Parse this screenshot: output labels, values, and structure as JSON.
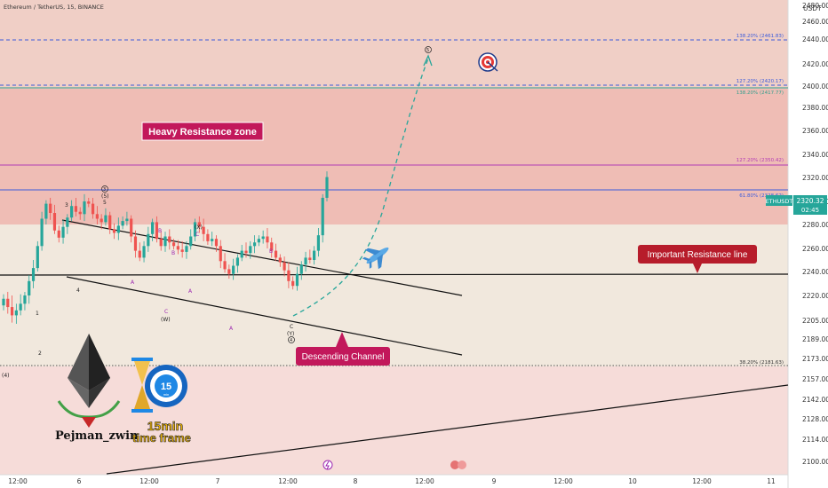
{
  "header": {
    "title": "Ethereum / TetherUS, 15, BINANCE"
  },
  "price_axis": {
    "unit_label": "USDT"
  },
  "ticker": {
    "symbol": "ETHUSDT",
    "price": "2320.32",
    "countdown": "02:45"
  },
  "annotations": {
    "heavy_zone": "Heavy Resistance zone",
    "important_line": "Important Resistance line",
    "channel": "Descending Channel"
  },
  "branding": {
    "author": "Pejman_zwin",
    "timeframe_line1": "15min",
    "timeframe_line2": "time frame",
    "clock_number": "15",
    "clock_unit": "min"
  },
  "colors": {
    "resistance_zone": "#efbdb5",
    "upper_zone": "#f0cfc6",
    "neutral_band": "#f1e8dd",
    "lower_zone": "#f6dcd9",
    "bull": "#26a69a",
    "bear": "#ef5350",
    "label_red": "#c2185b",
    "fib_blue": "#3b5bdb",
    "fib_purple": "#b23ab5",
    "fib_teal": "#2e9e8c"
  },
  "chart_data": {
    "type": "candlestick",
    "title": "Ethereum / TetherUS, 15, BINANCE",
    "y_axis": {
      "ticks": [
        2480,
        2460,
        2440,
        2420,
        2400,
        2380,
        2360,
        2340,
        2320,
        2300,
        2280,
        2260,
        2240,
        2220,
        2205,
        2189,
        2173,
        2157,
        2142,
        2128,
        2114,
        2100
      ],
      "labels": [
        "2480.00",
        "2460.00",
        "2440.00",
        "2420.00",
        "2400.00",
        "2380.00",
        "2360.00",
        "2340.00",
        "2320.00",
        "2300.00",
        "2280.00",
        "2260.00",
        "2240.00",
        "2220.00",
        "2205.00",
        "2189.00",
        "2173.00",
        "2157.00",
        "2142.00",
        "2128.00",
        "2114.00",
        "2100.00"
      ]
    },
    "x_axis": {
      "labels": [
        "12:00",
        "6",
        "12:00",
        "7",
        "12:00",
        "8",
        "12:00",
        "9",
        "12:00",
        "10",
        "12:00",
        "11"
      ]
    },
    "last_price": 2320.32,
    "levels": [
      {
        "label": "138.20% (2461.83)",
        "price": 2461.83,
        "color": "#3b5bdb",
        "style": "dashed"
      },
      {
        "label": "127.20% (2420.17)",
        "price": 2420.17,
        "color": "#3b5bdb",
        "style": "dashed"
      },
      {
        "label": "138.20% (2417.77)",
        "price": 2417.77,
        "color": "#2e9e8c",
        "style": "solid"
      },
      {
        "label": "127.20% (2350.42)",
        "price": 2350.42,
        "color": "#b23ab5",
        "style": "solid"
      },
      {
        "label": "61.80% (2328.62)",
        "price": 2328.62,
        "color": "#3b5bdb",
        "style": "solid"
      },
      {
        "label": "38.20% (2181.63)",
        "price": 2181.63,
        "color": "#555555",
        "style": "dotted"
      }
    ],
    "important_resistance": 2260,
    "zones": [
      {
        "name": "Heavy Resistance zone",
        "from": 2300,
        "to": 2480
      }
    ],
    "wave_labels": [
      "3",
      "4",
      "1",
      "2",
      "3",
      "(5)",
      "5",
      "B",
      "A",
      "C",
      "(W)",
      "(X)",
      "B",
      "A",
      "C",
      "A",
      "B",
      "C",
      "(Y)",
      "4",
      "5",
      "(4)"
    ],
    "candles_close": [
      2218,
      2213,
      2208,
      2211,
      2215,
      2220,
      2232,
      2243,
      2262,
      2285,
      2298,
      2290,
      2275,
      2269,
      2278,
      2286,
      2296,
      2291,
      2289,
      2300,
      2298,
      2289,
      2285,
      2282,
      2288,
      2276,
      2273,
      2279,
      2283,
      2285,
      2270,
      2258,
      2252,
      2262,
      2272,
      2282,
      2268,
      2262,
      2270,
      2265,
      2262,
      2259,
      2257,
      2262,
      2270,
      2282,
      2278,
      2272,
      2266,
      2268,
      2262,
      2249,
      2242,
      2238,
      2245,
      2252,
      2258,
      2256,
      2262,
      2265,
      2268,
      2270,
      2265,
      2258,
      2252,
      2248,
      2241,
      2232,
      2228,
      2238,
      2246,
      2252,
      2250,
      2258,
      2271,
      2303,
      2320.32
    ]
  }
}
